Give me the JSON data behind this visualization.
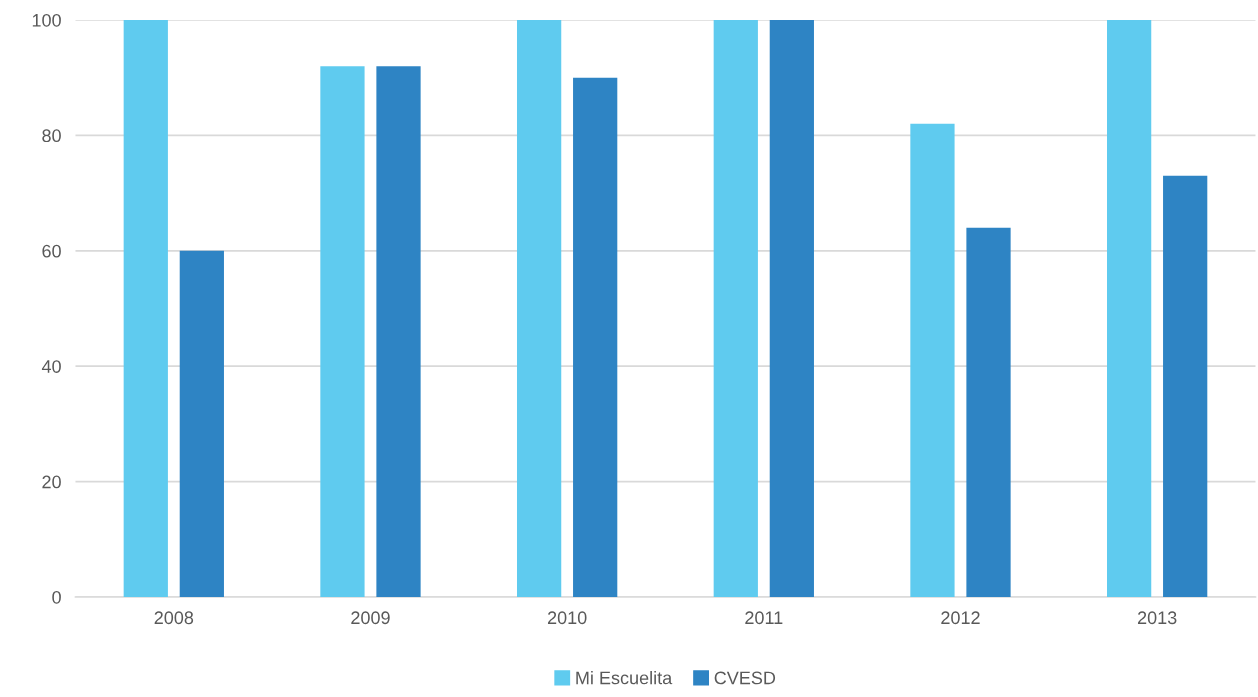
{
  "chart_data": {
    "type": "bar",
    "categories": [
      "2008",
      "2009",
      "2010",
      "2011",
      "2012",
      "2013"
    ],
    "series": [
      {
        "name": "Mi Escuelita",
        "color": "#5fcbef",
        "values": [
          100,
          92,
          100,
          100,
          82,
          100
        ]
      },
      {
        "name": "CVESD",
        "color": "#2e84c4",
        "values": [
          60,
          92,
          90,
          100,
          64,
          73
        ]
      }
    ],
    "ylim": [
      0,
      100
    ],
    "yticks": [
      0,
      20,
      40,
      60,
      80,
      100
    ],
    "grid": "y",
    "legend": "bottom"
  }
}
